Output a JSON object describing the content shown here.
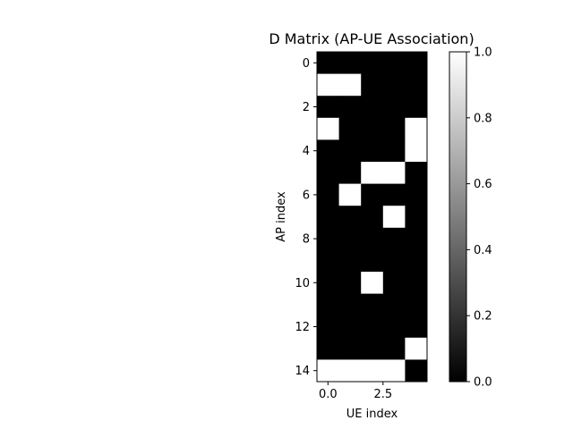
{
  "chart_data": {
    "type": "heatmap",
    "title": "D Matrix (AP-UE Association)",
    "xlabel": "UE index",
    "ylabel": "AP index",
    "x_ticks": [
      0.0,
      2.5
    ],
    "x_tick_labels": [
      "0.0",
      "2.5"
    ],
    "y_ticks": [
      0,
      2,
      4,
      6,
      8,
      10,
      12,
      14
    ],
    "y_tick_labels": [
      "0",
      "2",
      "4",
      "6",
      "8",
      "10",
      "12",
      "14"
    ],
    "xlim": [
      -0.5,
      4.5
    ],
    "ylim": [
      14.5,
      -0.5
    ],
    "colormap": "gray",
    "colorbar": {
      "range": [
        0.0,
        1.0
      ],
      "ticks": [
        0.0,
        0.2,
        0.4,
        0.6,
        0.8,
        1.0
      ],
      "tick_labels": [
        "0.0",
        "0.2",
        "0.4",
        "0.6",
        "0.8",
        "1.0"
      ]
    },
    "rows": 15,
    "cols": 5,
    "values": [
      [
        0,
        0,
        0,
        0,
        0
      ],
      [
        1,
        1,
        0,
        0,
        0
      ],
      [
        0,
        0,
        0,
        0,
        0
      ],
      [
        1,
        0,
        0,
        0,
        1
      ],
      [
        0,
        0,
        0,
        0,
        1
      ],
      [
        0,
        0,
        1,
        1,
        0
      ],
      [
        0,
        1,
        0,
        0,
        0
      ],
      [
        0,
        0,
        0,
        1,
        0
      ],
      [
        0,
        0,
        0,
        0,
        0
      ],
      [
        0,
        0,
        0,
        0,
        0
      ],
      [
        0,
        0,
        1,
        0,
        0
      ],
      [
        0,
        0,
        0,
        0,
        0
      ],
      [
        0,
        0,
        0,
        0,
        0
      ],
      [
        0,
        0,
        0,
        0,
        1
      ],
      [
        1,
        1,
        1,
        1,
        0
      ]
    ]
  }
}
